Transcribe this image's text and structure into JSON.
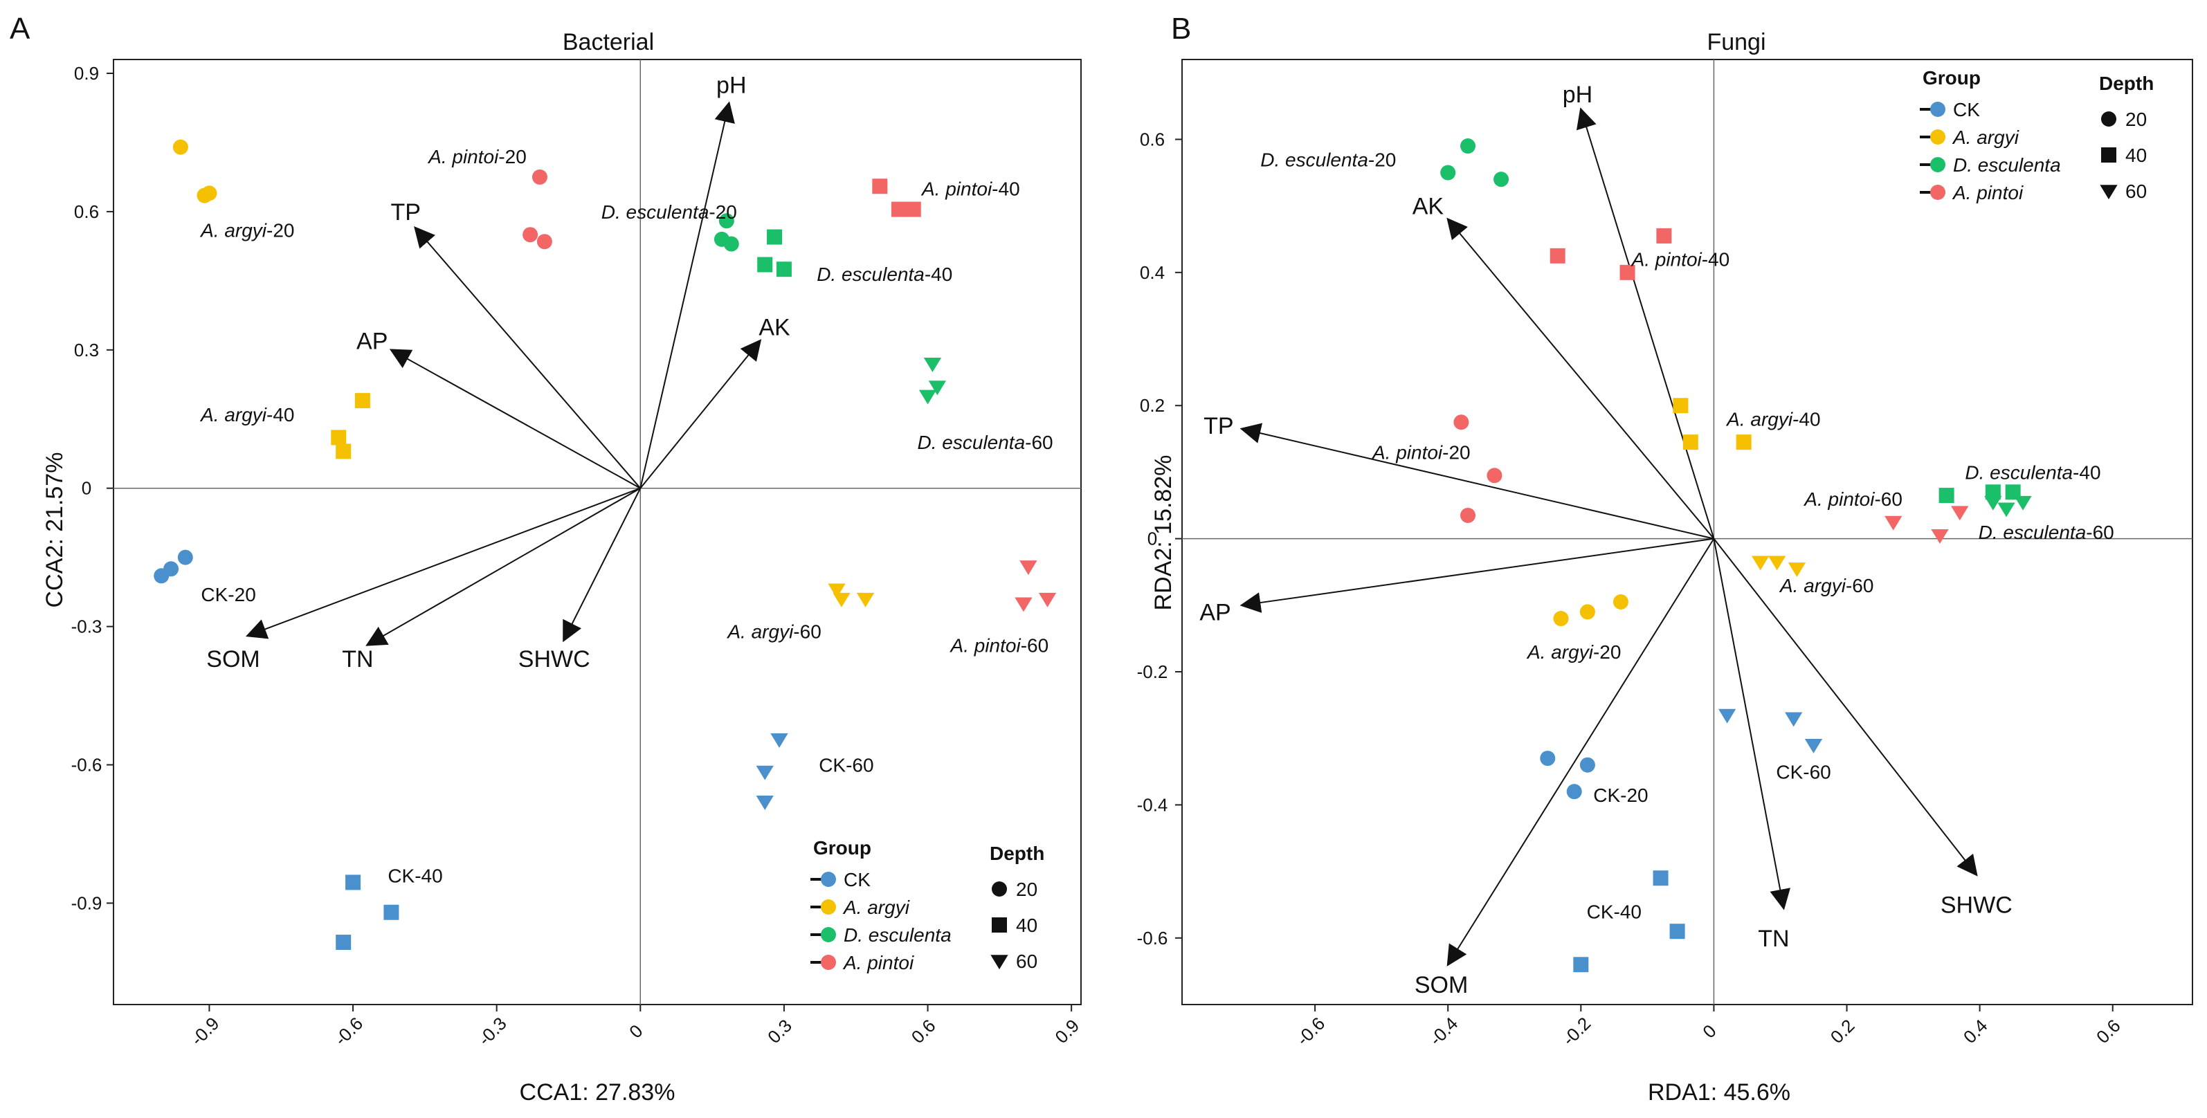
{
  "chart_data": [
    {
      "type": "scatter",
      "panel": "A",
      "title": "Bacterial",
      "xlabel": "CCA1: 27.83%",
      "ylabel": "CCA2: 21.57%",
      "xlim": [
        -1.1,
        0.92
      ],
      "ylim": [
        -1.12,
        0.93
      ],
      "xticks": [
        -0.9,
        -0.6,
        -0.3,
        0,
        0.3,
        0.6,
        0.9
      ],
      "xtick_labels": [
        "-0.9",
        "-0.6",
        "-0.3",
        "0",
        "0.3",
        "0.6",
        "0.9"
      ],
      "yticks": [
        0.9,
        0.6,
        0.3,
        0,
        -0.3,
        -0.6,
        -0.9
      ],
      "ytick_labels": [
        "0.9",
        "0.6",
        "0.3",
        "0",
        "-0.3",
        "-0.6",
        "-0.9"
      ],
      "points": [
        {
          "group": "CK",
          "depth": "20",
          "x": -1.0,
          "y": -0.19
        },
        {
          "group": "CK",
          "depth": "20",
          "x": -0.98,
          "y": -0.175
        },
        {
          "group": "CK",
          "depth": "20",
          "x": -0.95,
          "y": -0.15
        },
        {
          "group": "CK",
          "depth": "40",
          "x": -0.6,
          "y": -0.855
        },
        {
          "group": "CK",
          "depth": "40",
          "x": -0.52,
          "y": -0.92
        },
        {
          "group": "CK",
          "depth": "40",
          "x": -0.62,
          "y": -0.985
        },
        {
          "group": "CK",
          "depth": "60",
          "x": 0.29,
          "y": -0.545
        },
        {
          "group": "CK",
          "depth": "60",
          "x": 0.26,
          "y": -0.615
        },
        {
          "group": "CK",
          "depth": "60",
          "x": 0.26,
          "y": -0.68
        },
        {
          "group": "A. argyi",
          "depth": "20",
          "x": -0.96,
          "y": 0.74
        },
        {
          "group": "A. argyi",
          "depth": "20",
          "x": -0.9,
          "y": 0.64
        },
        {
          "group": "A. argyi",
          "depth": "20",
          "x": -0.91,
          "y": 0.635
        },
        {
          "group": "A. argyi",
          "depth": "40",
          "x": -0.58,
          "y": 0.19
        },
        {
          "group": "A. argyi",
          "depth": "40",
          "x": -0.63,
          "y": 0.11
        },
        {
          "group": "A. argyi",
          "depth": "40",
          "x": -0.62,
          "y": 0.08
        },
        {
          "group": "A. argyi",
          "depth": "60",
          "x": 0.41,
          "y": -0.22
        },
        {
          "group": "A. argyi",
          "depth": "60",
          "x": 0.42,
          "y": -0.24
        },
        {
          "group": "A. argyi",
          "depth": "60",
          "x": 0.47,
          "y": -0.24
        },
        {
          "group": "D. esculenta",
          "depth": "20",
          "x": 0.18,
          "y": 0.58
        },
        {
          "group": "D. esculenta",
          "depth": "20",
          "x": 0.17,
          "y": 0.54
        },
        {
          "group": "D. esculenta",
          "depth": "20",
          "x": 0.19,
          "y": 0.53
        },
        {
          "group": "D. esculenta",
          "depth": "40",
          "x": 0.28,
          "y": 0.545
        },
        {
          "group": "D. esculenta",
          "depth": "40",
          "x": 0.26,
          "y": 0.485
        },
        {
          "group": "D. esculenta",
          "depth": "40",
          "x": 0.3,
          "y": 0.475
        },
        {
          "group": "D. esculenta",
          "depth": "60",
          "x": 0.61,
          "y": 0.27
        },
        {
          "group": "D. esculenta",
          "depth": "60",
          "x": 0.62,
          "y": 0.22
        },
        {
          "group": "D. esculenta",
          "depth": "60",
          "x": 0.6,
          "y": 0.2
        },
        {
          "group": "A. pintoi",
          "depth": "20",
          "x": -0.21,
          "y": 0.675
        },
        {
          "group": "A. pintoi",
          "depth": "20",
          "x": -0.23,
          "y": 0.55
        },
        {
          "group": "A. pintoi",
          "depth": "20",
          "x": -0.2,
          "y": 0.535
        },
        {
          "group": "A. pintoi",
          "depth": "40",
          "x": 0.5,
          "y": 0.655
        },
        {
          "group": "A. pintoi",
          "depth": "40",
          "x": 0.54,
          "y": 0.605
        },
        {
          "group": "A. pintoi",
          "depth": "40",
          "x": 0.57,
          "y": 0.605
        },
        {
          "group": "A. pintoi",
          "depth": "60",
          "x": 0.81,
          "y": -0.17
        },
        {
          "group": "A. pintoi",
          "depth": "60",
          "x": 0.85,
          "y": -0.24
        },
        {
          "group": "A. pintoi",
          "depth": "60",
          "x": 0.8,
          "y": -0.25
        }
      ],
      "vectors": [
        {
          "name": "pH",
          "x": 0.185,
          "y": 0.835
        },
        {
          "name": "TP",
          "x": -0.47,
          "y": 0.565
        },
        {
          "name": "AP",
          "x": -0.52,
          "y": 0.3
        },
        {
          "name": "AK",
          "x": 0.25,
          "y": 0.32
        },
        {
          "name": "SOM",
          "x": -0.82,
          "y": -0.32
        },
        {
          "name": "TN",
          "x": -0.57,
          "y": -0.34
        },
        {
          "name": "SHWC",
          "x": -0.16,
          "y": -0.33
        }
      ],
      "vector_labels": [
        {
          "text": "pH",
          "x": 0.19,
          "y": 0.875
        },
        {
          "text": "TP",
          "x": -0.49,
          "y": 0.6
        },
        {
          "text": "AP",
          "x": -0.56,
          "y": 0.32
        },
        {
          "text": "AK",
          "x": 0.28,
          "y": 0.35
        },
        {
          "text": "SOM",
          "x": -0.85,
          "y": -0.37
        },
        {
          "text": "TN",
          "x": -0.59,
          "y": -0.37
        },
        {
          "text": "SHWC",
          "x": -0.18,
          "y": -0.37
        }
      ],
      "point_labels": [
        {
          "italic": "A. pintoi",
          "plain": "-20",
          "x": -0.34,
          "y": 0.72
        },
        {
          "italic": "A. argyi",
          "plain": "-20",
          "x": -0.82,
          "y": 0.56
        },
        {
          "italic": "D. esculenta",
          "plain": "-20",
          "x": 0.06,
          "y": 0.6
        },
        {
          "italic": "A. pintoi",
          "plain": "-40",
          "x": 0.69,
          "y": 0.65
        },
        {
          "italic": "D. esculenta",
          "plain": "-40",
          "x": 0.51,
          "y": 0.465
        },
        {
          "italic": "D. esculenta",
          "plain": "-60",
          "x": 0.72,
          "y": 0.1
        },
        {
          "italic": "A. argyi",
          "plain": "-40",
          "x": -0.82,
          "y": 0.16
        },
        {
          "italic": "",
          "plain": "CK-20",
          "x": -0.86,
          "y": -0.23
        },
        {
          "italic": "A. argyi",
          "plain": "-60",
          "x": 0.28,
          "y": -0.31
        },
        {
          "italic": "A. pintoi",
          "plain": "-60",
          "x": 0.75,
          "y": -0.34
        },
        {
          "italic": "",
          "plain": "CK-60",
          "x": 0.43,
          "y": -0.6
        },
        {
          "italic": "",
          "plain": "CK-40",
          "x": -0.47,
          "y": -0.84
        }
      ],
      "legend_position": "bottom-right"
    },
    {
      "type": "scatter",
      "panel": "B",
      "title": "Fungi",
      "xlabel": "RDA1: 45.6%",
      "ylabel": "RDA2: 15.82%",
      "xlim": [
        -0.8,
        0.72
      ],
      "ylim": [
        -0.7,
        0.72
      ],
      "xticks": [
        -0.6,
        -0.4,
        -0.2,
        0,
        0.2,
        0.4,
        0.6
      ],
      "xtick_labels": [
        "-0.6",
        "-0.4",
        "-0.2",
        "0",
        "0.2",
        "0.4",
        "0.6"
      ],
      "yticks": [
        0.6,
        0.4,
        0.2,
        0,
        -0.2,
        -0.4,
        -0.6
      ],
      "ytick_labels": [
        "0.6",
        "0.4",
        "0.2",
        "0",
        "-0.2",
        "-0.4",
        "-0.6"
      ],
      "points": [
        {
          "group": "CK",
          "depth": "20",
          "x": -0.25,
          "y": -0.33
        },
        {
          "group": "CK",
          "depth": "20",
          "x": -0.19,
          "y": -0.34
        },
        {
          "group": "CK",
          "depth": "20",
          "x": -0.21,
          "y": -0.38
        },
        {
          "group": "CK",
          "depth": "40",
          "x": -0.08,
          "y": -0.51
        },
        {
          "group": "CK",
          "depth": "40",
          "x": -0.055,
          "y": -0.59
        },
        {
          "group": "CK",
          "depth": "40",
          "x": -0.2,
          "y": -0.64
        },
        {
          "group": "CK",
          "depth": "60",
          "x": 0.02,
          "y": -0.265
        },
        {
          "group": "CK",
          "depth": "60",
          "x": 0.12,
          "y": -0.27
        },
        {
          "group": "CK",
          "depth": "60",
          "x": 0.15,
          "y": -0.31
        },
        {
          "group": "A. argyi",
          "depth": "20",
          "x": -0.23,
          "y": -0.12
        },
        {
          "group": "A. argyi",
          "depth": "20",
          "x": -0.19,
          "y": -0.11
        },
        {
          "group": "A. argyi",
          "depth": "20",
          "x": -0.14,
          "y": -0.095
        },
        {
          "group": "A. argyi",
          "depth": "40",
          "x": -0.05,
          "y": 0.2
        },
        {
          "group": "A. argyi",
          "depth": "40",
          "x": -0.035,
          "y": 0.145
        },
        {
          "group": "A. argyi",
          "depth": "40",
          "x": 0.045,
          "y": 0.145
        },
        {
          "group": "A. argyi",
          "depth": "60",
          "x": 0.07,
          "y": -0.035
        },
        {
          "group": "A. argyi",
          "depth": "60",
          "x": 0.095,
          "y": -0.035
        },
        {
          "group": "A. argyi",
          "depth": "60",
          "x": 0.125,
          "y": -0.045
        },
        {
          "group": "D. esculenta",
          "depth": "20",
          "x": -0.37,
          "y": 0.59
        },
        {
          "group": "D. esculenta",
          "depth": "20",
          "x": -0.4,
          "y": 0.55
        },
        {
          "group": "D. esculenta",
          "depth": "20",
          "x": -0.32,
          "y": 0.54
        },
        {
          "group": "D. esculenta",
          "depth": "40",
          "x": 0.35,
          "y": 0.065
        },
        {
          "group": "D. esculenta",
          "depth": "40",
          "x": 0.42,
          "y": 0.07
        },
        {
          "group": "D. esculenta",
          "depth": "40",
          "x": 0.45,
          "y": 0.07
        },
        {
          "group": "D. esculenta",
          "depth": "60",
          "x": 0.42,
          "y": 0.055
        },
        {
          "group": "D. esculenta",
          "depth": "60",
          "x": 0.44,
          "y": 0.045
        },
        {
          "group": "D. esculenta",
          "depth": "60",
          "x": 0.465,
          "y": 0.055
        },
        {
          "group": "A. pintoi",
          "depth": "20",
          "x": -0.38,
          "y": 0.175
        },
        {
          "group": "A. pintoi",
          "depth": "20",
          "x": -0.33,
          "y": 0.095
        },
        {
          "group": "A. pintoi",
          "depth": "20",
          "x": -0.37,
          "y": 0.035
        },
        {
          "group": "A. pintoi",
          "depth": "40",
          "x": -0.075,
          "y": 0.455
        },
        {
          "group": "A. pintoi",
          "depth": "40",
          "x": -0.235,
          "y": 0.425
        },
        {
          "group": "A. pintoi",
          "depth": "40",
          "x": -0.13,
          "y": 0.4
        },
        {
          "group": "A. pintoi",
          "depth": "60",
          "x": 0.27,
          "y": 0.025
        },
        {
          "group": "A. pintoi",
          "depth": "60",
          "x": 0.34,
          "y": 0.005
        },
        {
          "group": "A. pintoi",
          "depth": "60",
          "x": 0.37,
          "y": 0.04
        }
      ],
      "vectors": [
        {
          "name": "pH",
          "x": -0.2,
          "y": 0.645
        },
        {
          "name": "AK",
          "x": -0.4,
          "y": 0.48
        },
        {
          "name": "TP",
          "x": -0.71,
          "y": 0.165
        },
        {
          "name": "AP",
          "x": -0.71,
          "y": -0.1
        },
        {
          "name": "SOM",
          "x": -0.4,
          "y": -0.64
        },
        {
          "name": "TN",
          "x": 0.105,
          "y": -0.555
        },
        {
          "name": "SHWC",
          "x": 0.395,
          "y": -0.505
        }
      ],
      "vector_labels": [
        {
          "text": "pH",
          "x": -0.205,
          "y": 0.668
        },
        {
          "text": "AK",
          "x": -0.43,
          "y": 0.5
        },
        {
          "text": "TP",
          "x": -0.745,
          "y": 0.17
        },
        {
          "text": "AP",
          "x": -0.75,
          "y": -0.11
        },
        {
          "text": "SOM",
          "x": -0.41,
          "y": -0.67
        },
        {
          "text": "TN",
          "x": 0.09,
          "y": -0.6
        },
        {
          "text": "SHWC",
          "x": 0.395,
          "y": -0.55
        }
      ],
      "point_labels": [
        {
          "italic": "D. esculenta",
          "plain": "-20",
          "x": -0.58,
          "y": 0.57
        },
        {
          "italic": "A. pintoi",
          "plain": "-40",
          "x": -0.05,
          "y": 0.42
        },
        {
          "italic": "A. argyi",
          "plain": "-40",
          "x": 0.09,
          "y": 0.18
        },
        {
          "italic": "A. pintoi",
          "plain": "-20",
          "x": -0.44,
          "y": 0.13
        },
        {
          "italic": "D. esculenta",
          "plain": "-40",
          "x": 0.48,
          "y": 0.1
        },
        {
          "italic": "A. pintoi",
          "plain": "-60",
          "x": 0.21,
          "y": 0.06
        },
        {
          "italic": "D. esculenta",
          "plain": "-60",
          "x": 0.5,
          "y": 0.01
        },
        {
          "italic": "A. argyi",
          "plain": "-60",
          "x": 0.17,
          "y": -0.07
        },
        {
          "italic": "A. argyi",
          "plain": "-20",
          "x": -0.21,
          "y": -0.17
        },
        {
          "italic": "",
          "plain": "CK-20",
          "x": -0.14,
          "y": -0.385
        },
        {
          "italic": "",
          "plain": "CK-60",
          "x": 0.135,
          "y": -0.35
        },
        {
          "italic": "",
          "plain": "CK-40",
          "x": -0.15,
          "y": -0.56
        }
      ],
      "legend_position": "top-right"
    }
  ],
  "legend": {
    "group_title": "Group",
    "depth_title": "Depth",
    "groups": [
      {
        "name": "CK",
        "italic": false,
        "color": "#4a90cc"
      },
      {
        "name": "A. argyi",
        "italic": true,
        "color": "#f5c000"
      },
      {
        "name": "D. esculenta",
        "italic": true,
        "color": "#1bbf6a"
      },
      {
        "name": "A. pintoi",
        "italic": true,
        "color": "#f26666"
      }
    ],
    "depths": [
      {
        "name": "20",
        "shape": "circle"
      },
      {
        "name": "40",
        "shape": "square"
      },
      {
        "name": "60",
        "shape": "triangle-down"
      }
    ]
  }
}
